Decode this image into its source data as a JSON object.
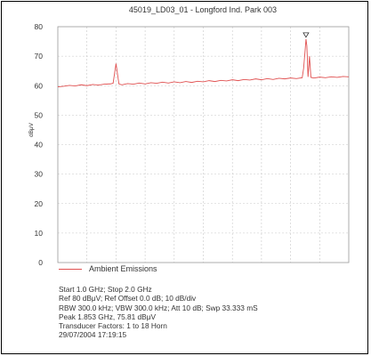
{
  "chart_data": {
    "type": "line",
    "title": "45019_LD03_01 - Longford Ind. Park 003",
    "ylabel": "dBμV",
    "xlabel": "",
    "ylim": [
      0,
      80
    ],
    "yticks": [
      "0",
      "10",
      "20",
      "30",
      "40",
      "50",
      "60",
      "70",
      "80"
    ],
    "xlim": [
      1.0,
      2.0
    ],
    "grid": true,
    "legend_position": "bottom-left",
    "series": [
      {
        "name": "Ambient Emissions",
        "color": "#e05050",
        "x": [
          1.0,
          1.02,
          1.04,
          1.06,
          1.08,
          1.1,
          1.12,
          1.14,
          1.16,
          1.18,
          1.19,
          1.2,
          1.21,
          1.22,
          1.24,
          1.26,
          1.28,
          1.3,
          1.32,
          1.34,
          1.36,
          1.38,
          1.4,
          1.42,
          1.44,
          1.46,
          1.48,
          1.5,
          1.52,
          1.54,
          1.56,
          1.58,
          1.6,
          1.62,
          1.64,
          1.66,
          1.68,
          1.7,
          1.72,
          1.74,
          1.76,
          1.78,
          1.8,
          1.82,
          1.84,
          1.845,
          1.85,
          1.853,
          1.856,
          1.86,
          1.865,
          1.87,
          1.88,
          1.9,
          1.92,
          1.94,
          1.96,
          1.98,
          2.0
        ],
        "y": [
          59.6,
          59.8,
          60.1,
          59.9,
          60.3,
          60.0,
          60.4,
          60.2,
          60.5,
          60.6,
          60.8,
          67.5,
          60.6,
          60.3,
          60.7,
          60.5,
          60.9,
          60.6,
          61.0,
          60.8,
          61.2,
          60.9,
          61.3,
          61.0,
          61.4,
          61.1,
          61.5,
          61.3,
          61.7,
          61.4,
          61.8,
          61.6,
          62.0,
          61.7,
          62.1,
          61.9,
          62.3,
          62.0,
          62.4,
          62.1,
          62.5,
          62.3,
          62.6,
          62.4,
          62.7,
          66.0,
          72.0,
          75.8,
          73.5,
          63.0,
          70.0,
          62.8,
          62.6,
          62.9,
          62.7,
          63.0,
          62.8,
          63.1,
          63.0
        ]
      }
    ],
    "peak_marker": {
      "x": 1.853,
      "y": 75.81,
      "label": ""
    }
  },
  "info": {
    "lines": [
      "Start 1.0 GHz; Stop 2.0 GHz",
      "Ref 80 dBμV; Ref Offset 0.0 dB; 10 dB/div",
      "RBW 300.0 kHz; VBW 300.0 kHz; Att 10 dB; Swp 33.333 mS",
      "Peak 1.853 GHz, 75.81 dBμV",
      "Transducer Factors: 1 to 18 Horn",
      "29/07/2004 17:19:15"
    ]
  }
}
